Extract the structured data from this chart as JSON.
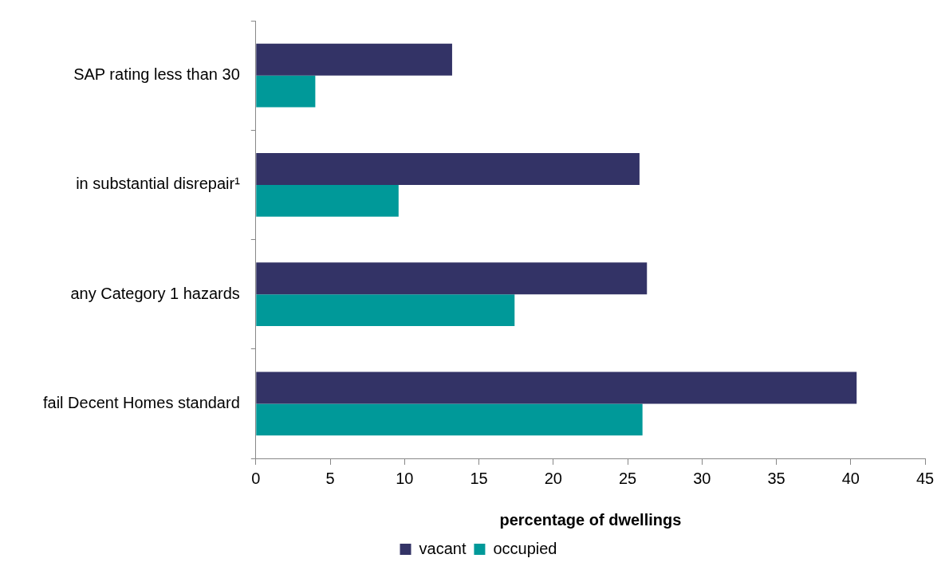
{
  "chart_data": {
    "type": "bar",
    "orientation": "horizontal",
    "xlabel": "percentage of dwellings",
    "categories": [
      "SAP rating less than 30",
      "in substantial disrepair¹",
      "any Category 1 hazards",
      "fail Decent Homes standard"
    ],
    "series": [
      {
        "name": "vacant",
        "color": "#333366",
        "values": [
          13.2,
          25.8,
          26.3,
          40.4
        ]
      },
      {
        "name": "occupied",
        "color": "#009999",
        "values": [
          4.0,
          9.6,
          17.4,
          26.0
        ]
      }
    ],
    "xlim": [
      0,
      45
    ],
    "xticks": [
      0,
      5,
      10,
      15,
      20,
      25,
      30,
      35,
      40,
      45
    ],
    "grid": false,
    "legend": "bottom"
  }
}
